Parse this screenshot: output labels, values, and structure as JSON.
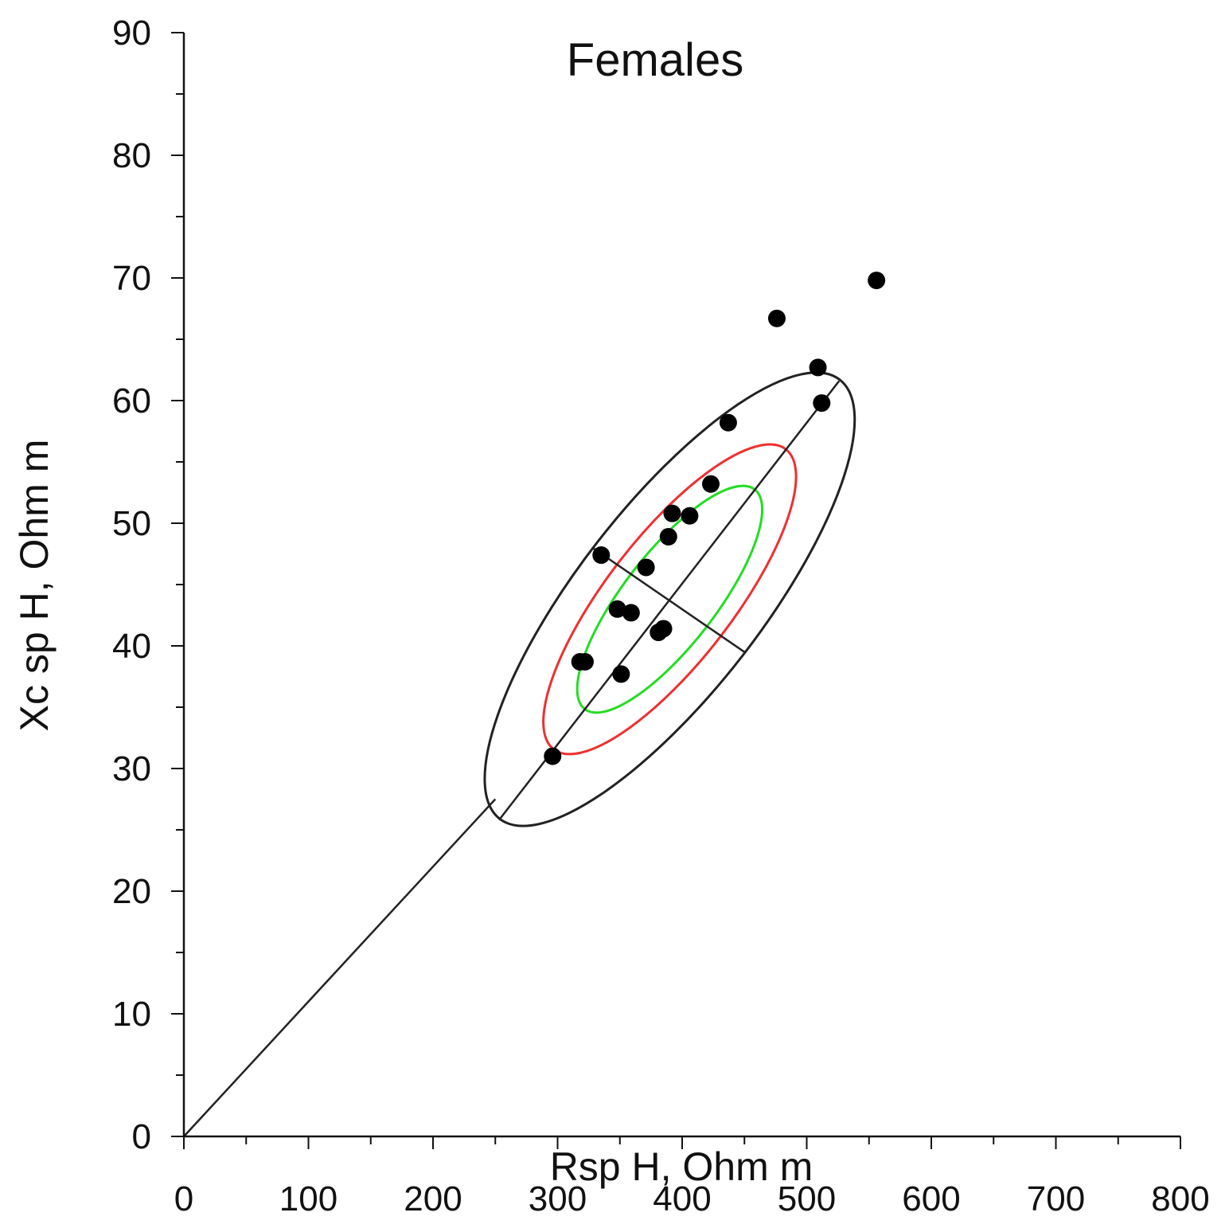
{
  "chart_data": {
    "type": "scatter",
    "title": "Females",
    "xlabel": "Rsp H, Ohm m",
    "ylabel": "Xc sp H, Ohm m",
    "xlim": [
      0,
      800
    ],
    "ylim": [
      0,
      90
    ],
    "x_ticks": [
      0,
      100,
      200,
      300,
      400,
      500,
      600,
      700,
      800
    ],
    "y_ticks": [
      0,
      10,
      20,
      30,
      40,
      50,
      60,
      70,
      80,
      90
    ],
    "grid": false,
    "series": [
      {
        "name": "points",
        "color": "#000000",
        "points": [
          [
            296,
            31.0
          ],
          [
            318,
            38.7
          ],
          [
            322,
            38.7
          ],
          [
            335,
            47.4
          ],
          [
            348,
            43.0
          ],
          [
            351,
            37.7
          ],
          [
            359,
            42.7
          ],
          [
            371,
            46.4
          ],
          [
            381,
            41.1
          ],
          [
            385,
            41.4
          ],
          [
            389,
            48.9
          ],
          [
            392,
            50.8
          ],
          [
            406,
            50.6
          ],
          [
            423,
            53.2
          ],
          [
            437,
            58.2
          ],
          [
            476,
            66.7
          ],
          [
            509,
            62.7
          ],
          [
            512,
            59.8
          ],
          [
            556,
            69.8
          ]
        ]
      }
    ],
    "reference_lines": [
      {
        "name": "origin-line",
        "from": [
          0,
          0
        ],
        "to": [
          250,
          27.5
        ],
        "color": "#222222"
      },
      {
        "name": "major-axis",
        "from": [
          253,
          25.8
        ],
        "to": [
          526,
          61.6
        ],
        "color": "#222222"
      },
      {
        "name": "minor-axis",
        "from": [
          328,
          48.0
        ],
        "to": [
          450,
          39.5
        ],
        "color": "#222222"
      }
    ],
    "tolerance_ellipses": [
      {
        "name": "outer-ellipse",
        "color": "#222222",
        "center": [
          390,
          43.8
        ],
        "semi_major_ratio": 1.0
      },
      {
        "name": "middle-ellipse",
        "color": "#ee3030",
        "center": [
          390,
          43.8
        ],
        "semi_major_ratio": 0.683
      },
      {
        "name": "inner-ellipse",
        "color": "#22dd22",
        "center": [
          390,
          43.8
        ],
        "semi_major_ratio": 0.5
      }
    ]
  }
}
